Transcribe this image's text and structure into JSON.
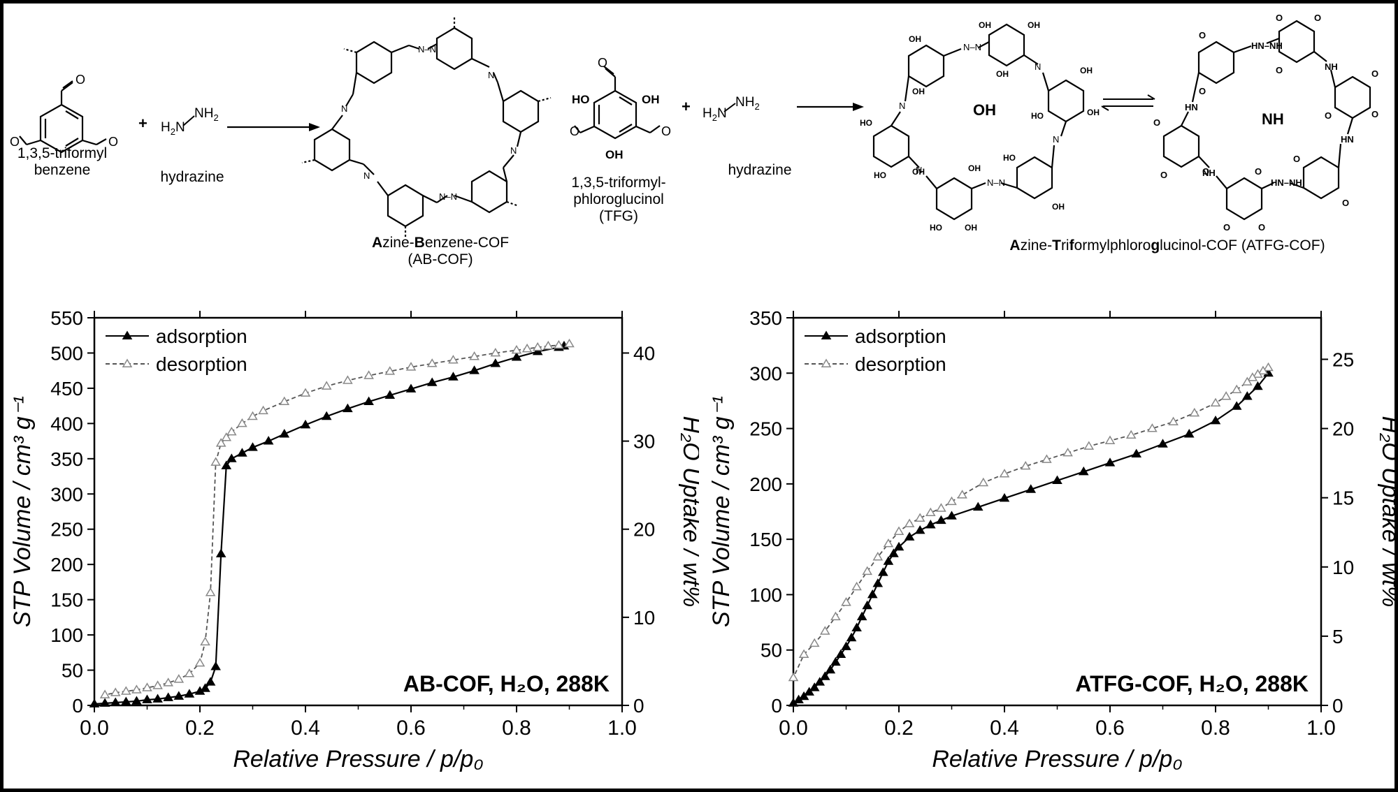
{
  "scheme": {
    "reactant1_label_line1": "1,3,5-triformyl",
    "reactant1_label_line2": "benzene",
    "reactant2_label": "hydrazine",
    "reactant3_label_line1": "1,3,5-triformyl-",
    "reactant3_label_line2": "phloroglucinol",
    "reactant3_label_line3": "(TFG)",
    "reactant4_label": "hydrazine",
    "cof1_name_parts": [
      "A",
      "zine-",
      "B",
      "enzene-COF"
    ],
    "cof1_abbrev": "(AB-COF)",
    "cof2_name_parts": [
      "A",
      "zine-",
      "T",
      "ri",
      "f",
      "ormylphloro",
      "g",
      "lucinol-COF (ATFG-COF)"
    ],
    "ring_label_oh": "OH",
    "ring_label_nh": "NH",
    "plus": "+"
  },
  "chart_data": [
    {
      "type": "line",
      "annotation": "AB-COF, H₂O, 288K",
      "xlabel": "Relative Pressure / p/p₀",
      "ylabel": "STP Volume  / cm³ g⁻¹",
      "y2label": "H₂O Uptake / wt%",
      "xlim": [
        0.0,
        1.0
      ],
      "ylim": [
        0,
        550
      ],
      "y2lim": [
        0,
        44
      ],
      "xticks": [
        "0.0",
        "0.2",
        "0.4",
        "0.6",
        "0.8",
        "1.0"
      ],
      "yticks": [
        "0",
        "50",
        "100",
        "150",
        "200",
        "250",
        "300",
        "350",
        "400",
        "450",
        "500",
        "550"
      ],
      "y2ticks": [
        "0",
        "10",
        "20",
        "30",
        "40"
      ],
      "legend_position": "top-left",
      "series": [
        {
          "name": "adsorption",
          "style": "solid-filled-triangle",
          "color": "#000000",
          "x": [
            0.0,
            0.02,
            0.04,
            0.06,
            0.08,
            0.1,
            0.12,
            0.14,
            0.16,
            0.18,
            0.2,
            0.21,
            0.22,
            0.23,
            0.24,
            0.25,
            0.26,
            0.28,
            0.3,
            0.33,
            0.36,
            0.4,
            0.44,
            0.48,
            0.52,
            0.56,
            0.6,
            0.64,
            0.68,
            0.72,
            0.76,
            0.8,
            0.84,
            0.88,
            0.89
          ],
          "y": [
            2,
            3,
            4,
            5,
            6,
            8,
            9,
            11,
            13,
            16,
            20,
            24,
            33,
            55,
            215,
            340,
            350,
            358,
            366,
            375,
            385,
            398,
            410,
            421,
            431,
            440,
            449,
            458,
            466,
            475,
            485,
            494,
            502,
            508,
            510
          ]
        },
        {
          "name": "desorption",
          "style": "dashed-open-triangle",
          "color": "#888888",
          "x": [
            0.9,
            0.88,
            0.86,
            0.84,
            0.82,
            0.8,
            0.76,
            0.72,
            0.68,
            0.64,
            0.6,
            0.56,
            0.52,
            0.48,
            0.44,
            0.4,
            0.36,
            0.32,
            0.3,
            0.28,
            0.26,
            0.25,
            0.24,
            0.23,
            0.22,
            0.21,
            0.2,
            0.18,
            0.16,
            0.14,
            0.12,
            0.1,
            0.08,
            0.06,
            0.04,
            0.02
          ],
          "y": [
            513,
            511,
            510,
            508,
            506,
            504,
            500,
            495,
            490,
            485,
            480,
            474,
            468,
            461,
            453,
            443,
            431,
            418,
            410,
            400,
            388,
            380,
            372,
            345,
            160,
            90,
            60,
            45,
            37,
            32,
            28,
            25,
            22,
            20,
            18,
            15
          ]
        }
      ]
    },
    {
      "type": "line",
      "annotation": "ATFG-COF, H₂O, 288K",
      "xlabel": "Relative Pressure / p/p₀",
      "ylabel": "STP Volume  / cm³ g⁻¹",
      "y2label": "H₂O Uptake / wt%",
      "xlim": [
        0.0,
        1.0
      ],
      "ylim": [
        0,
        350
      ],
      "y2lim": [
        0,
        28
      ],
      "xticks": [
        "0.0",
        "0.2",
        "0.4",
        "0.6",
        "0.8",
        "1.0"
      ],
      "yticks": [
        "0",
        "50",
        "100",
        "150",
        "200",
        "250",
        "300",
        "350"
      ],
      "y2ticks": [
        "0",
        "5",
        "10",
        "15",
        "20",
        "25"
      ],
      "legend_position": "top-left",
      "series": [
        {
          "name": "adsorption",
          "style": "solid-filled-triangle",
          "color": "#000000",
          "x": [
            0.0,
            0.01,
            0.02,
            0.03,
            0.04,
            0.05,
            0.06,
            0.07,
            0.08,
            0.09,
            0.1,
            0.11,
            0.12,
            0.13,
            0.14,
            0.15,
            0.16,
            0.17,
            0.18,
            0.19,
            0.2,
            0.22,
            0.24,
            0.26,
            0.28,
            0.3,
            0.35,
            0.4,
            0.45,
            0.5,
            0.55,
            0.6,
            0.65,
            0.7,
            0.75,
            0.8,
            0.84,
            0.86,
            0.88,
            0.9
          ],
          "y": [
            2,
            5,
            8,
            12,
            16,
            21,
            26,
            32,
            39,
            46,
            53,
            61,
            70,
            80,
            90,
            100,
            110,
            120,
            130,
            137,
            143,
            152,
            158,
            163,
            167,
            171,
            179,
            187,
            195,
            203,
            211,
            219,
            227,
            236,
            245,
            257,
            270,
            279,
            288,
            300
          ]
        },
        {
          "name": "desorption",
          "style": "dashed-open-triangle",
          "color": "#888888",
          "x": [
            0.9,
            0.89,
            0.88,
            0.87,
            0.86,
            0.84,
            0.82,
            0.8,
            0.76,
            0.72,
            0.68,
            0.64,
            0.6,
            0.56,
            0.52,
            0.48,
            0.44,
            0.4,
            0.36,
            0.32,
            0.3,
            0.28,
            0.26,
            0.24,
            0.22,
            0.2,
            0.18,
            0.16,
            0.14,
            0.12,
            0.1,
            0.08,
            0.06,
            0.04,
            0.02,
            0.0
          ],
          "y": [
            305,
            302,
            299,
            296,
            292,
            285,
            279,
            273,
            264,
            256,
            250,
            244,
            239,
            234,
            228,
            222,
            216,
            209,
            201,
            190,
            184,
            178,
            174,
            169,
            164,
            157,
            146,
            134,
            121,
            107,
            93,
            80,
            67,
            56,
            46,
            25
          ]
        }
      ]
    }
  ]
}
